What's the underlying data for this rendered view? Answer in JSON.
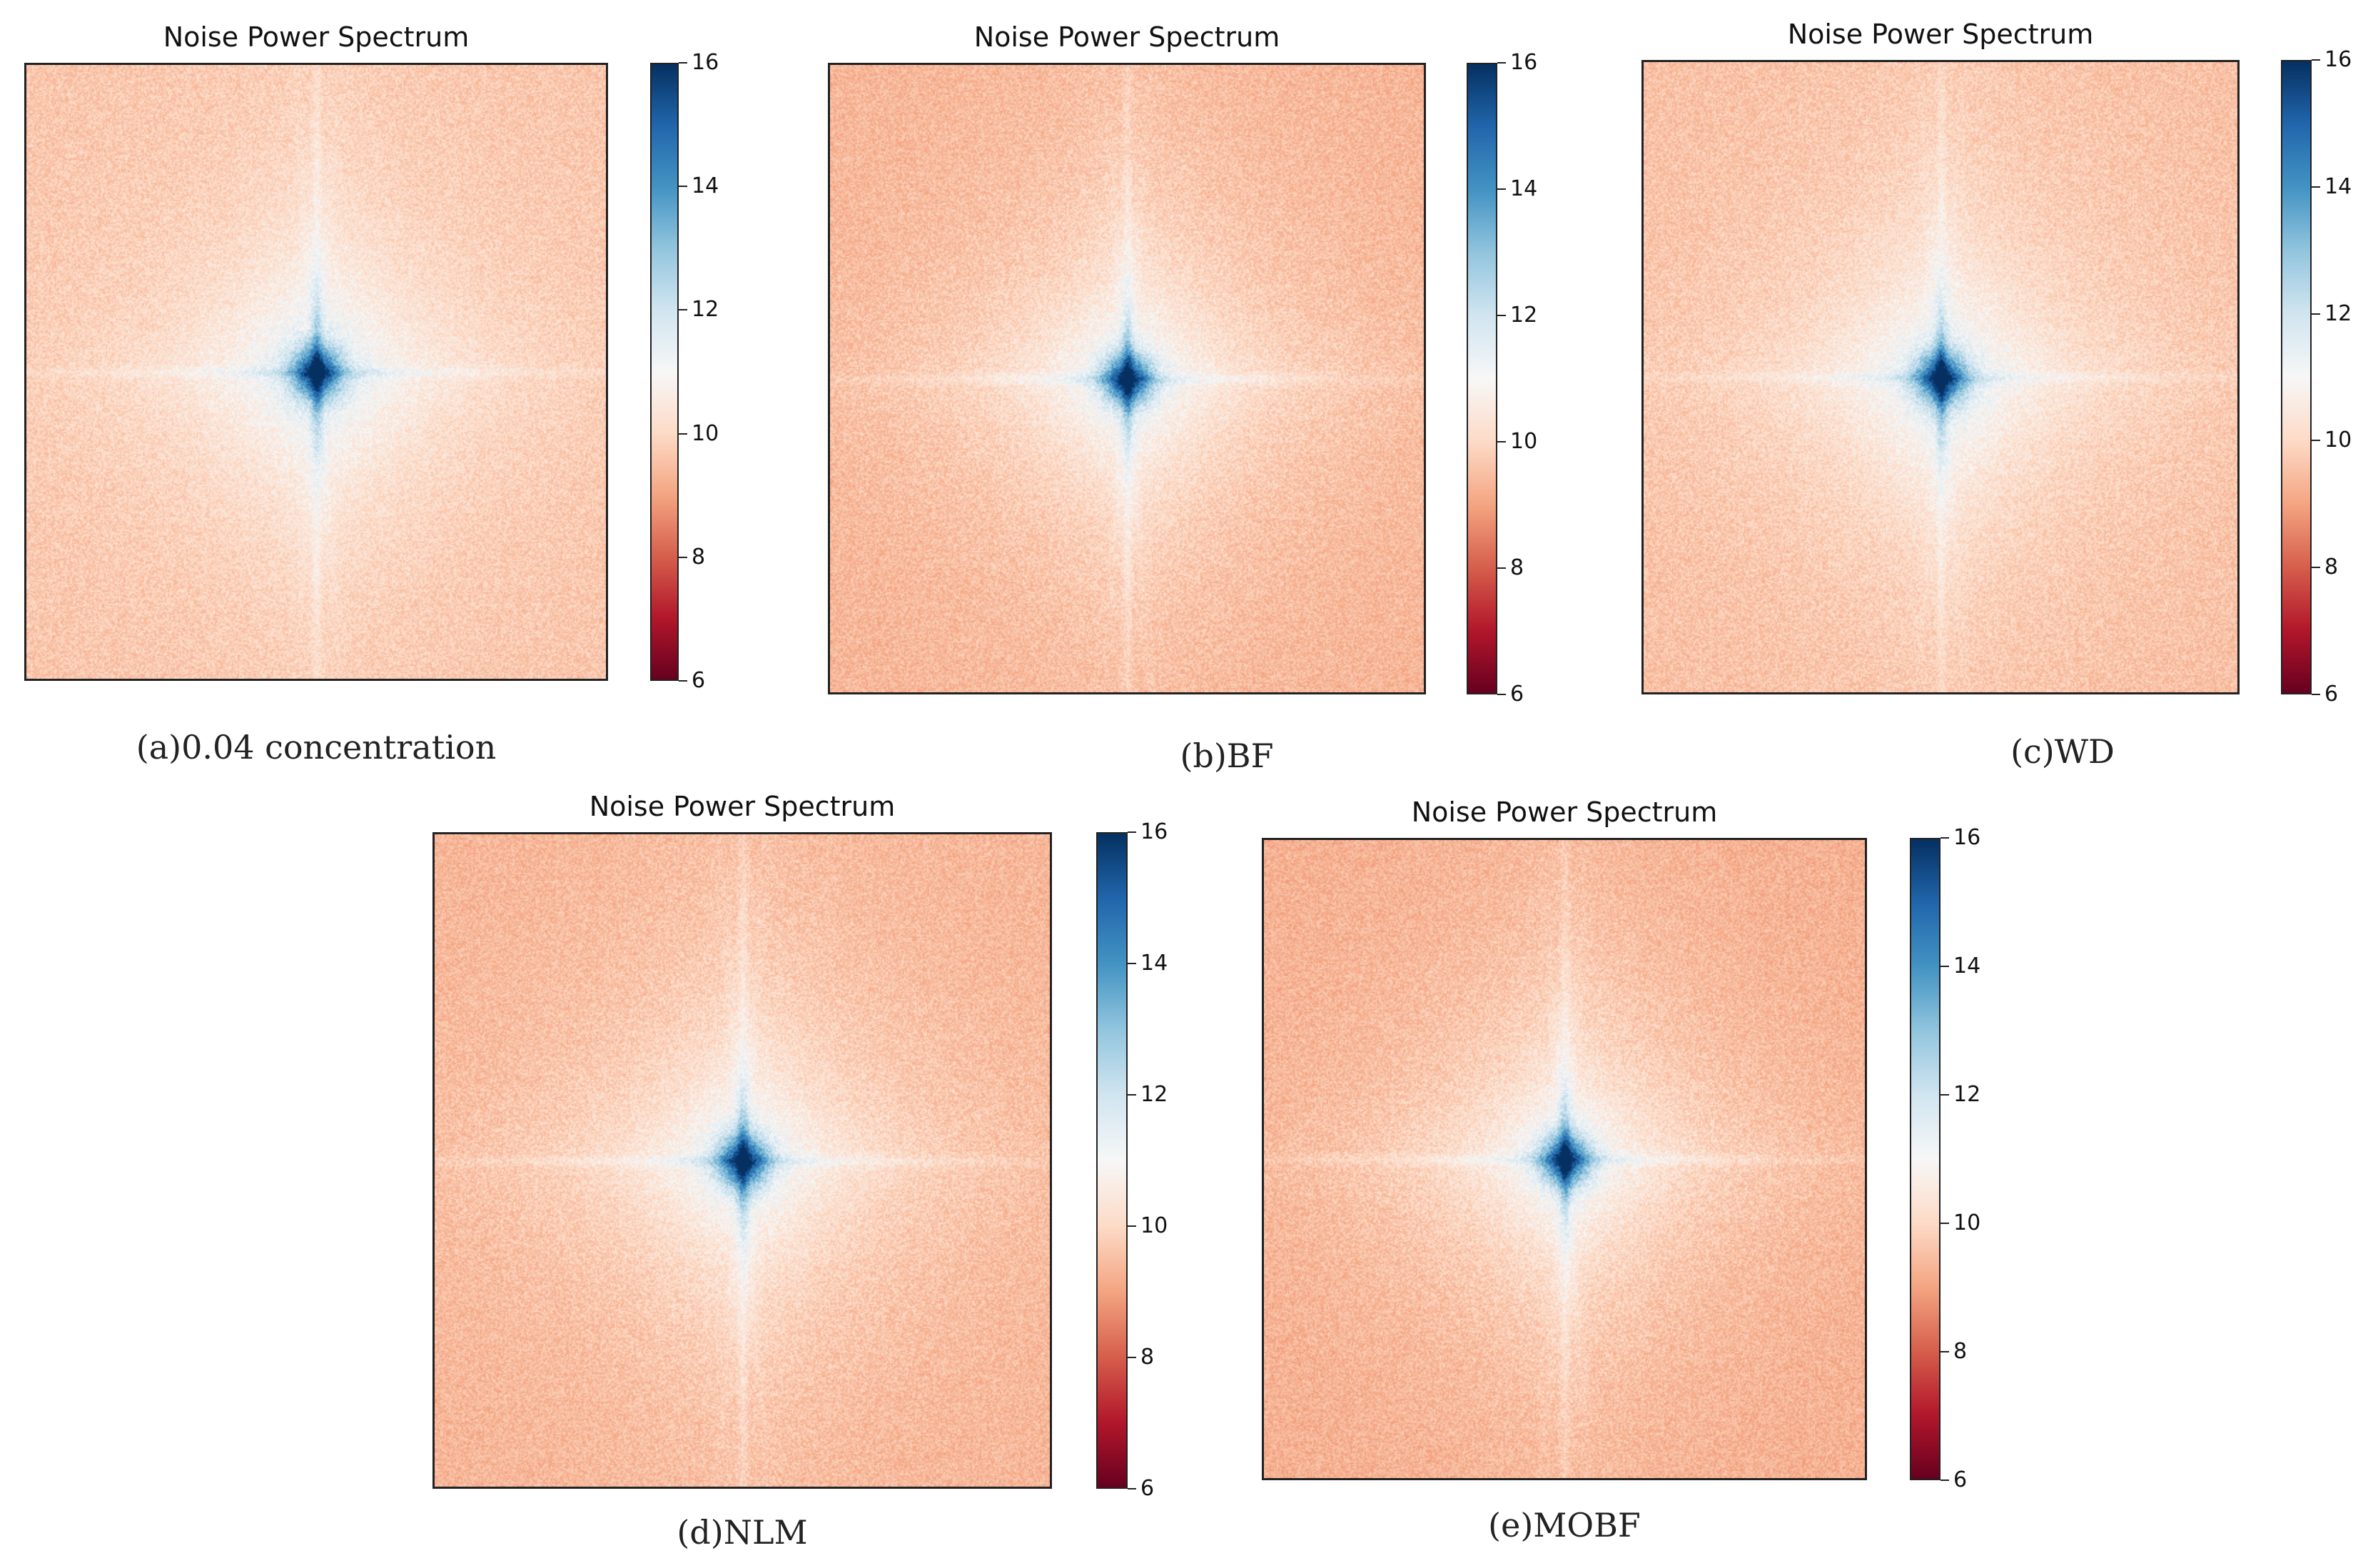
{
  "chart_data": [
    {
      "type": "heatmap",
      "title": "Noise Power Spectrum",
      "caption": "(a)0.04 concentration",
      "colormap": "RdBu",
      "vmin": 6,
      "vmax": 16,
      "colorbar_ticks": [
        "16",
        "14",
        "12",
        "10",
        "8",
        "6"
      ],
      "background_value": 9.6,
      "center_value": 16
    },
    {
      "type": "heatmap",
      "title": "Noise Power Spectrum",
      "caption": "(b)BF",
      "colormap": "RdBu",
      "vmin": 6,
      "vmax": 16,
      "colorbar_ticks": [
        "16",
        "14",
        "12",
        "10",
        "8",
        "6"
      ],
      "background_value": 9.3,
      "center_value": 16
    },
    {
      "type": "heatmap",
      "title": "Noise Power Spectrum",
      "caption": "(c)WD",
      "colormap": "RdBu",
      "vmin": 6,
      "vmax": 16,
      "colorbar_ticks": [
        "16",
        "14",
        "12",
        "10",
        "8",
        "6"
      ],
      "background_value": 9.5,
      "center_value": 16
    },
    {
      "type": "heatmap",
      "title": "Noise Power Spectrum",
      "caption": "(d)NLM",
      "colormap": "RdBu",
      "vmin": 6,
      "vmax": 16,
      "colorbar_ticks": [
        "16",
        "14",
        "12",
        "10",
        "8",
        "6"
      ],
      "background_value": 9.3,
      "center_value": 16
    },
    {
      "type": "heatmap",
      "title": "Noise Power Spectrum",
      "caption": "(e)MOBF",
      "colormap": "RdBu",
      "vmin": 6,
      "vmax": 16,
      "colorbar_ticks": [
        "16",
        "14",
        "12",
        "10",
        "8",
        "6"
      ],
      "background_value": 9.2,
      "center_value": 16
    }
  ]
}
